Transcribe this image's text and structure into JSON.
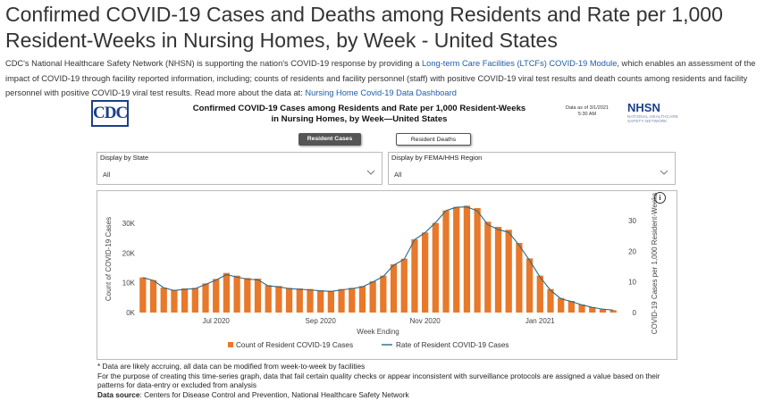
{
  "page": {
    "title": "Confirmed COVID-19 Cases and Deaths among Residents and Rate per 1,000 Resident-Weeks in Nursing Homes, by Week - United States",
    "intro_part1": "CDC's National Healthcare Safety Network (NHSN) is supporting the nation's COVID-19 response by providing a ",
    "intro_link1": "Long-term Care Facilities (LTCFs) COVID-19 Module",
    "intro_part2": ", which enables an assessment of the impact of COVID-19 through facility reported information, including; counts of residents and facility personnel (staff) with positive COVID-19 viral test results and death counts among residents and facility personnel with positive COVID-19 viral test results. Read more about the data at: ",
    "intro_link2": "Nursing Home Covid-19 Data Dashboard"
  },
  "dashboard": {
    "logo_text": "CDC",
    "title": "Confirmed COVID-19 Cases among Residents and Rate per 1,000 Resident-Weeks in Nursing Homes, by Week—United States",
    "data_as_of_line1": "Data as of 3/1/2021",
    "data_as_of_line2": "5:30 AM",
    "nhsn_logo": "NHSN",
    "nhsn_sub": "NATIONAL HEALTHCARE SAFETY NETWORK",
    "toggle_active": "Resident Cases",
    "toggle_inactive": "Resident Deaths",
    "filter_state_label": "Display by State",
    "filter_state_value": "All",
    "filter_region_label": "Display by FEMA/HHS Region",
    "filter_region_value": "All",
    "info_icon": "i"
  },
  "chart_data": {
    "type": "bar",
    "xlabel": "Week Ending",
    "ylabel": "Count of COVID-19 Cases",
    "y2label": "COVID-19 Cases per 1,000 Resident-Weeks",
    "ylim": [
      0,
      36000
    ],
    "y2lim": [
      0,
      35
    ],
    "yticks": [
      "0K",
      "10K",
      "20K",
      "30K"
    ],
    "y2ticks": [
      "0",
      "10",
      "20",
      "30"
    ],
    "xticks": [
      "Jul 2020",
      "Sep 2020",
      "Nov 2020",
      "Jan 2021"
    ],
    "grid": false,
    "legend_position": "bottom",
    "colors": {
      "bars": "#e8782a",
      "line": "#2b6a8a"
    },
    "series": [
      {
        "name": "Count of Resident COVID-19 Cases",
        "kind": "bar",
        "values": [
          11800,
          10900,
          8400,
          7600,
          8100,
          8300,
          9800,
          11300,
          13300,
          12400,
          11600,
          11400,
          9200,
          8900,
          8300,
          8100,
          7900,
          7500,
          7300,
          7900,
          8300,
          8900,
          10500,
          12400,
          16200,
          18100,
          24600,
          26900,
          30100,
          34300,
          35500,
          35900,
          35100,
          30500,
          28800,
          27800,
          23400,
          18200,
          12400,
          7900,
          4900,
          3900,
          2700,
          1800,
          1100,
          800
        ]
      },
      {
        "name": "Rate of Resident COVID-19 Cases",
        "kind": "line",
        "values": [
          11.4,
          10.5,
          8.1,
          7.2,
          7.6,
          7.8,
          9.2,
          10.6,
          12.4,
          11.6,
          10.9,
          10.7,
          8.7,
          8.4,
          7.8,
          7.6,
          7.4,
          7.1,
          6.9,
          7.4,
          7.8,
          8.4,
          10.0,
          11.8,
          15.5,
          17.4,
          23.8,
          26.1,
          29.4,
          33.3,
          34.4,
          34.5,
          33.2,
          28.7,
          27.1,
          26.2,
          22.0,
          17.0,
          11.6,
          7.3,
          4.5,
          3.6,
          2.5,
          1.7,
          1.1,
          0.8
        ]
      }
    ]
  },
  "footnotes": {
    "line1": "* Data are likely accruing, all data can be modified from week-to-week by facilities",
    "line2": "For the purpose of creating this time-series graph, data that fail certain quality checks or appear inconsistent with surveillance protocols are assigned a value based on their patterns for data-entry or excluded from analysis",
    "source_label": "Data source",
    "source_text": ": Centers for Disease Control and Prevention, National Healthcare Safety Network"
  }
}
